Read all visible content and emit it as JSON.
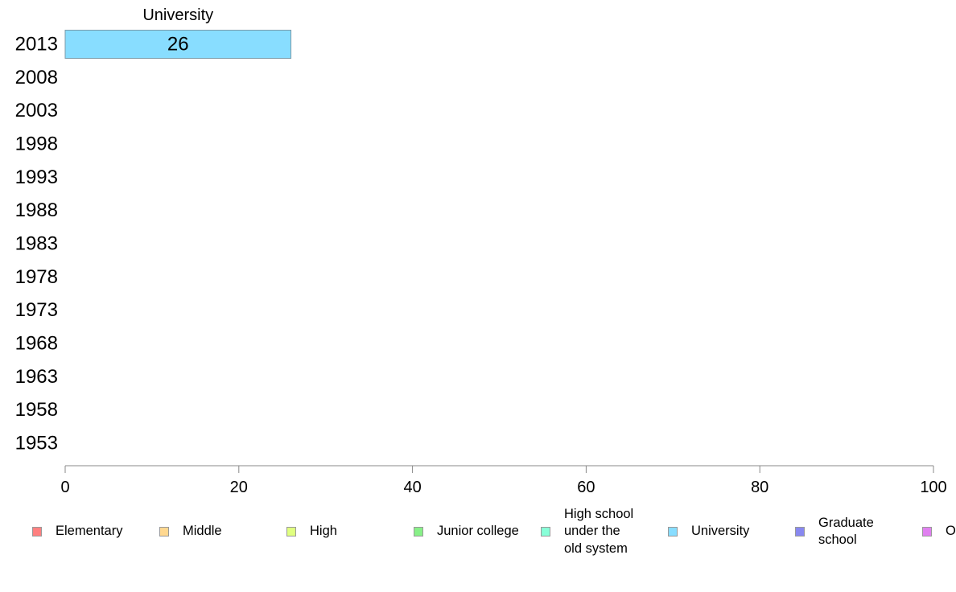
{
  "chart_data": {
    "type": "bar",
    "orientation": "horizontal",
    "categories": [
      "2013",
      "2008",
      "2003",
      "1998",
      "1993",
      "1988",
      "1983",
      "1978",
      "1973",
      "1968",
      "1963",
      "1958",
      "1953"
    ],
    "series": [
      {
        "name": "Elementary",
        "color": "#ff8080",
        "values": [
          null,
          null,
          null,
          null,
          null,
          null,
          null,
          null,
          null,
          null,
          null,
          null,
          null
        ]
      },
      {
        "name": "Middle",
        "color": "#ffd890",
        "values": [
          null,
          null,
          null,
          null,
          null,
          null,
          null,
          null,
          null,
          null,
          null,
          null,
          null
        ]
      },
      {
        "name": "High",
        "color": "#e0ff80",
        "values": [
          null,
          null,
          null,
          null,
          null,
          null,
          null,
          null,
          null,
          null,
          null,
          null,
          null
        ]
      },
      {
        "name": "Junior college",
        "color": "#88f088",
        "values": [
          null,
          null,
          null,
          null,
          null,
          null,
          null,
          null,
          null,
          null,
          null,
          null,
          null
        ]
      },
      {
        "name": "High school\nunder the\nold system",
        "color": "#88ffd8",
        "values": [
          null,
          null,
          null,
          null,
          null,
          null,
          null,
          null,
          null,
          null,
          null,
          null,
          null
        ]
      },
      {
        "name": "University",
        "color": "#88ddff",
        "values": [
          26,
          null,
          null,
          null,
          null,
          null,
          null,
          null,
          null,
          null,
          null,
          null,
          null
        ]
      },
      {
        "name": "Graduate\nschool",
        "color": "#8888f0",
        "values": [
          null,
          null,
          null,
          null,
          null,
          null,
          null,
          null,
          null,
          null,
          null,
          null,
          null
        ]
      },
      {
        "name": "O",
        "color": "#e080f0",
        "values": [
          null,
          null,
          null,
          null,
          null,
          null,
          null,
          null,
          null,
          null,
          null,
          null,
          null
        ]
      }
    ],
    "bar_top_label": "University",
    "xlim": [
      0,
      100
    ],
    "xticks": [
      0,
      20,
      40,
      60,
      80,
      100
    ],
    "grid": false,
    "legend_position": "bottom"
  }
}
